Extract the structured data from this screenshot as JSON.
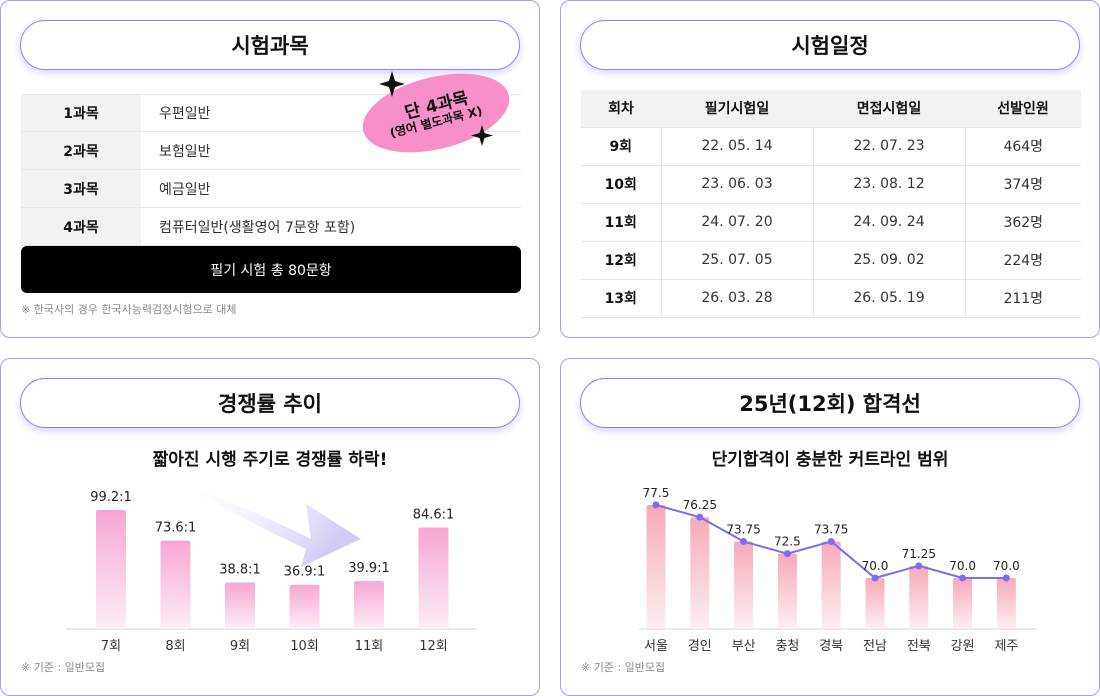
{
  "subjects": {
    "title": "시험과목",
    "rows": [
      {
        "label": "1과목",
        "value": "우편일반"
      },
      {
        "label": "2과목",
        "value": "보험일반"
      },
      {
        "label": "3과목",
        "value": "예금일반"
      },
      {
        "label": "4과목",
        "value": "컴퓨터일반(생활영어 7문항 포함)"
      }
    ],
    "total": "필기 시험 총 80문항",
    "badge_line1": "단 4과목",
    "badge_line2": "(영어 별도과목 X)",
    "note": "※ 한국사의 경우 한국사능력검정시험으로 대체"
  },
  "schedule": {
    "title": "시험일정",
    "headers": [
      "회차",
      "필기시험일",
      "면접시험일",
      "선발인원"
    ],
    "rows": [
      [
        "9회",
        "22. 05. 14",
        "22. 07. 23",
        "464명"
      ],
      [
        "10회",
        "23. 06. 03",
        "23. 08. 12",
        "374명"
      ],
      [
        "11회",
        "24. 07. 20",
        "24. 09. 24",
        "362명"
      ],
      [
        "12회",
        "25. 07. 05",
        "25. 09. 02",
        "224명"
      ],
      [
        "13회",
        "26. 03. 28",
        "26. 05. 19",
        "211명"
      ]
    ]
  },
  "competition": {
    "title": "경쟁률 추이",
    "subtitle": "짧아진 시행 주기로 경쟁률 하락!",
    "note": "※ 기준 : 일반모집"
  },
  "passline": {
    "title": "25년(12회) 합격선",
    "subtitle": "단기합격이 충분한 커트라인 범위",
    "note": "※ 기준 : 일반모집"
  },
  "colors": {
    "accent": "#8f82ee",
    "badge_pink": "#f78fc8",
    "bar_pink": "#f7a6d3",
    "line": "#7b6cf0"
  },
  "chart_data": [
    {
      "type": "bar",
      "categories": [
        "7회",
        "8회",
        "9회",
        "10회",
        "11회",
        "12회"
      ],
      "values": [
        99.2,
        73.6,
        38.8,
        36.9,
        39.9,
        84.6
      ],
      "labels": [
        "99.2:1",
        "73.6:1",
        "38.8:1",
        "36.9:1",
        "39.9:1",
        "84.6:1"
      ],
      "title": "",
      "xlabel": "",
      "ylabel": "",
      "ylim": [
        0,
        100
      ]
    },
    {
      "type": "bar",
      "categories": [
        "서울",
        "경인",
        "부산",
        "충청",
        "경북",
        "전남",
        "전북",
        "강원",
        "제주"
      ],
      "values": [
        77.5,
        76.25,
        73.75,
        72.5,
        73.75,
        70.0,
        71.25,
        70.0,
        70.0
      ],
      "labels": [
        "77.5",
        "76.25",
        "73.75",
        "72.5",
        "73.75",
        "70.0",
        "71.25",
        "70.0",
        "70.0"
      ],
      "overlay": "line",
      "title": "",
      "xlabel": "",
      "ylabel": "",
      "ylim": [
        60,
        80
      ]
    }
  ]
}
